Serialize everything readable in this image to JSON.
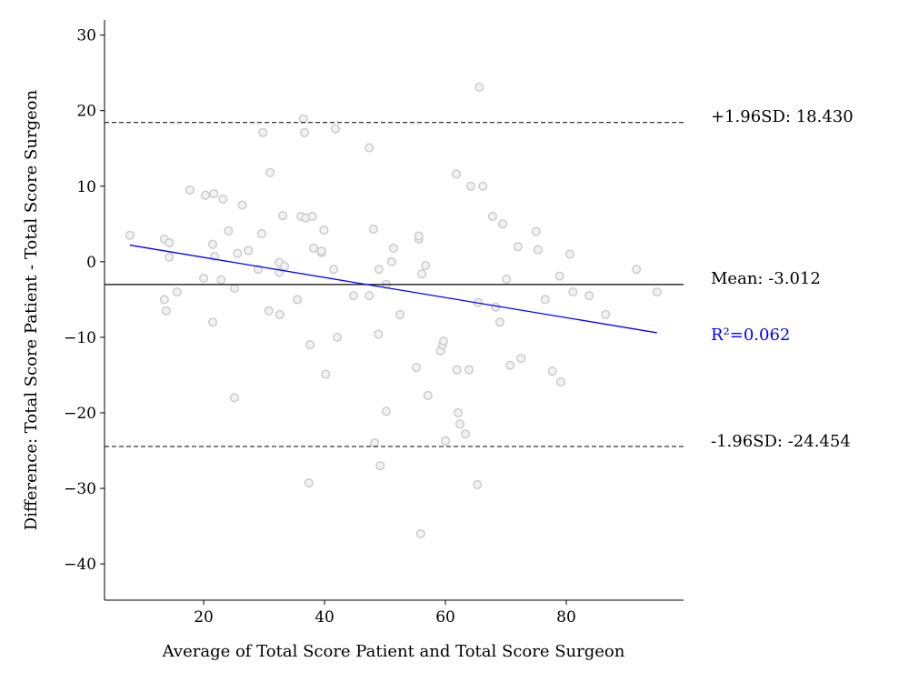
{
  "chart_data": {
    "type": "scatter",
    "title": "",
    "xlabel": "Average of Total Score Patient and Total Score Surgeon",
    "ylabel": "Difference: Total Score Patient - Total Score Surgeon",
    "xlim": [
      3.6,
      99.4
    ],
    "ylim": [
      -44.8,
      32.0
    ],
    "xticks": [
      20,
      40,
      60,
      80
    ],
    "yticks": [
      -40,
      -30,
      -20,
      -10,
      0,
      10,
      20,
      30
    ],
    "grid": false,
    "colors": {
      "points_edge": "#cccccc",
      "points_fill": "#f2f2f2",
      "regression": "#0000ff",
      "lines": "#000000"
    },
    "points": [
      [
        7.8,
        3.5
      ],
      [
        13.5,
        3.0
      ],
      [
        14.3,
        2.5
      ],
      [
        14.3,
        0.6
      ],
      [
        13.5,
        -5
      ],
      [
        13.8,
        -6.5
      ],
      [
        15.6,
        -4
      ],
      [
        17.7,
        9.5
      ],
      [
        20.3,
        8.8
      ],
      [
        21.7,
        9
      ],
      [
        23.2,
        8.3
      ],
      [
        26.4,
        7.5
      ],
      [
        29.8,
        17.1
      ],
      [
        31.0,
        11.8
      ],
      [
        24.1,
        4.1
      ],
      [
        21.5,
        2.3
      ],
      [
        21.8,
        0.7
      ],
      [
        20,
        -2.2
      ],
      [
        22.9,
        -2.4
      ],
      [
        25.1,
        -3.5
      ],
      [
        21.5,
        -8
      ],
      [
        25.1,
        -18
      ],
      [
        25.6,
        1.1
      ],
      [
        27.4,
        1.5
      ],
      [
        29,
        -1
      ],
      [
        29.6,
        3.7
      ],
      [
        30.8,
        -6.5
      ],
      [
        32.6,
        -7
      ],
      [
        33.1,
        6.1
      ],
      [
        32.5,
        -0.1
      ],
      [
        33.4,
        -0.6
      ],
      [
        32.5,
        -1.4
      ],
      [
        35.5,
        -5
      ],
      [
        36.1,
        6
      ],
      [
        36.9,
        5.8
      ],
      [
        38,
        6
      ],
      [
        38.2,
        1.8
      ],
      [
        36.7,
        17.1
      ],
      [
        36.5,
        18.9
      ],
      [
        37.6,
        -11
      ],
      [
        37.4,
        -29.3
      ],
      [
        39.5,
        1.2
      ],
      [
        39.9,
        4.2
      ],
      [
        39.5,
        1.4
      ],
      [
        40.2,
        -14.9
      ],
      [
        41.5,
        -1
      ],
      [
        41.8,
        17.6
      ],
      [
        42.1,
        -10
      ],
      [
        44.8,
        -4.5
      ],
      [
        47.4,
        -4.5
      ],
      [
        47.4,
        15.1
      ],
      [
        49,
        -1
      ],
      [
        48.1,
        4.3
      ],
      [
        48.9,
        -9.6
      ],
      [
        48.3,
        -24
      ],
      [
        49.2,
        -27
      ],
      [
        50.2,
        -19.8
      ],
      [
        50.2,
        -3
      ],
      [
        51.1,
        0
      ],
      [
        51.4,
        1.8
      ],
      [
        52.5,
        -7
      ],
      [
        55.2,
        -14
      ],
      [
        55.6,
        3
      ],
      [
        55.6,
        3.4
      ],
      [
        56.1,
        -1.6
      ],
      [
        56.7,
        -0.5
      ],
      [
        57.1,
        -17.7
      ],
      [
        55.9,
        -36
      ],
      [
        59.2,
        -11.8
      ],
      [
        59.5,
        -11
      ],
      [
        59.7,
        -10.5
      ],
      [
        60,
        -23.7
      ],
      [
        61.8,
        11.6
      ],
      [
        61.9,
        -14.3
      ],
      [
        62.1,
        -20
      ],
      [
        62.4,
        -21.5
      ],
      [
        63.3,
        -22.8
      ],
      [
        63.9,
        -14.3
      ],
      [
        64.2,
        10
      ],
      [
        65.4,
        -5.4
      ],
      [
        65.6,
        23.1
      ],
      [
        65.3,
        -29.5
      ],
      [
        66.2,
        10
      ],
      [
        67.8,
        6
      ],
      [
        68.3,
        -6
      ],
      [
        69,
        -8
      ],
      [
        69.5,
        5
      ],
      [
        70.1,
        -2.3
      ],
      [
        70.7,
        -13.7
      ],
      [
        72,
        2
      ],
      [
        72.5,
        -12.8
      ],
      [
        75,
        4
      ],
      [
        75.3,
        1.6
      ],
      [
        76.5,
        -5
      ],
      [
        77.7,
        -14.5
      ],
      [
        78.9,
        -1.9
      ],
      [
        79.1,
        -15.9
      ],
      [
        80.6,
        1
      ],
      [
        81.1,
        -4
      ],
      [
        83.8,
        -4.5
      ],
      [
        86.5,
        -7
      ],
      [
        91.6,
        -1
      ],
      [
        95,
        -4
      ]
    ],
    "mean": -3.012,
    "upper_loa": 18.43,
    "lower_loa": -24.454,
    "regression": {
      "x": [
        7.8,
        95
      ],
      "y": [
        2.2,
        -9.4
      ],
      "r2": 0.062
    },
    "annotations": {
      "upper": "+1.96SD: 18.430",
      "mean": "Mean: -3.012",
      "r2": "R²=0.062",
      "lower": "-1.96SD: -24.454"
    }
  }
}
